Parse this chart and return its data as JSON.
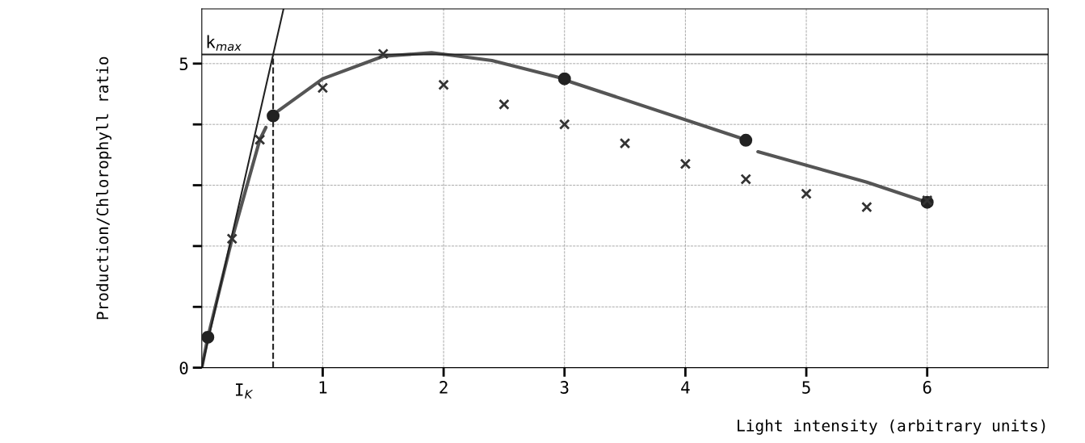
{
  "chart_data": {
    "type": "line",
    "xlabel": "Light intensity (arbitrary units)",
    "ylabel": "Production/Chlorophyll ratio",
    "xlim": [
      0,
      7.0
    ],
    "ylim": [
      0,
      5.9
    ],
    "xticks": [
      1,
      2,
      3,
      4,
      5,
      6
    ],
    "yticks": [
      0,
      {
        "value": 1,
        "label": null
      },
      {
        "value": 2,
        "label": null
      },
      {
        "value": 3,
        "label": null
      },
      {
        "value": 4,
        "label": null
      },
      5
    ],
    "grid": true,
    "series": [
      {
        "color": "#555555",
        "marker": "none",
        "line_style": "solid",
        "x": [
          0,
          0.05,
          0.25,
          0.48,
          0.53,
          0.56,
          0.63,
          1.0,
          1.5,
          1.9,
          2.4,
          3.0,
          3.05,
          4.45,
          4.5,
          4.6,
          5.5,
          6.0
        ],
        "values": [
          0,
          0.5,
          2.12,
          3.75,
          3.95,
          null,
          4.22,
          4.75,
          5.12,
          5.18,
          5.05,
          4.75,
          4.7,
          3.78,
          null,
          3.55,
          3.05,
          2.72
        ]
      },
      {
        "type": "line",
        "color": "#222222",
        "marker": "none",
        "line_style": "solid",
        "x": [
          0,
          0.676
        ],
        "values": [
          0,
          5.9
        ]
      },
      {
        "type": "scatter",
        "color": "#222222",
        "marker": "circle",
        "x": [
          0.05,
          0.59,
          3.0,
          4.5,
          6.0
        ],
        "values": [
          0.5,
          4.14,
          4.75,
          3.74,
          2.72
        ]
      },
      {
        "type": "scatter",
        "color": "#333333",
        "marker": "cross",
        "x": [
          0.25,
          0.48,
          1.0,
          1.5,
          2.0,
          2.5,
          3.0,
          3.5,
          4.0,
          4.5,
          5.0,
          5.5,
          6.0
        ],
        "values": [
          2.12,
          3.75,
          4.6,
          5.16,
          4.65,
          4.33,
          4.0,
          3.69,
          3.35,
          3.1,
          2.86,
          2.64,
          2.75
        ]
      }
    ],
    "ref_lines": [
      {
        "axis": "y",
        "value": 5.15,
        "label": "k$_{max}$",
        "color": "#222222",
        "line_style": "solid"
      },
      {
        "axis": "x",
        "value": 0.59,
        "label": "I$_{K}$",
        "color": "#222222",
        "line_style": "dashed"
      }
    ]
  }
}
